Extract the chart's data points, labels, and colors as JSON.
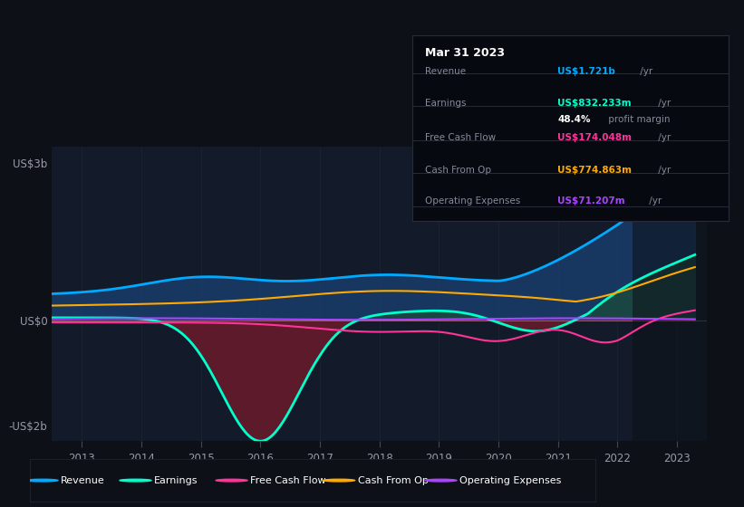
{
  "background_color": "#0d1117",
  "plot_bg_color": "#131b2a",
  "years": [
    2013,
    2014,
    2015,
    2016,
    2017,
    2018,
    2019,
    2020,
    2021,
    2022,
    2023
  ],
  "ylim": [
    -2300000000.0,
    3300000000.0
  ],
  "yticks": [
    -2000000000.0,
    0,
    3000000000.0
  ],
  "ytick_labels": [
    "-US$2b",
    "US$0",
    "US$3b"
  ],
  "revenue_color": "#00aaff",
  "earnings_color": "#00ffcc",
  "fcf_color": "#ff3399",
  "cashfromop_color": "#ffaa00",
  "opex_color": "#aa44ff",
  "revenue_fill_color": "#1a3d6a",
  "earnings_fill_pos_color": "#1a4a3a",
  "earnings_fill_neg_color": "#6b1a2a",
  "tooltip": {
    "date": "Mar 31 2023",
    "revenue_label": "Revenue",
    "revenue_value": "US$1.721b",
    "revenue_color": "#00aaff",
    "earnings_label": "Earnings",
    "earnings_value": "US$832.233m",
    "earnings_color": "#00ffcc",
    "margin_value": "48.4%",
    "fcf_label": "Free Cash Flow",
    "fcf_value": "US$174.048m",
    "fcf_color": "#ff3399",
    "cashop_label": "Cash From Op",
    "cashop_value": "US$774.863m",
    "cashop_color": "#ffaa00",
    "opex_label": "Operating Expenses",
    "opex_value": "US$71.207m",
    "opex_color": "#aa44ff"
  },
  "legend_items": [
    {
      "label": "Revenue",
      "color": "#00aaff"
    },
    {
      "label": "Earnings",
      "color": "#00ffcc"
    },
    {
      "label": "Free Cash Flow",
      "color": "#ff3399"
    },
    {
      "label": "Cash From Op",
      "color": "#ffaa00"
    },
    {
      "label": "Operating Expenses",
      "color": "#aa44ff"
    }
  ]
}
